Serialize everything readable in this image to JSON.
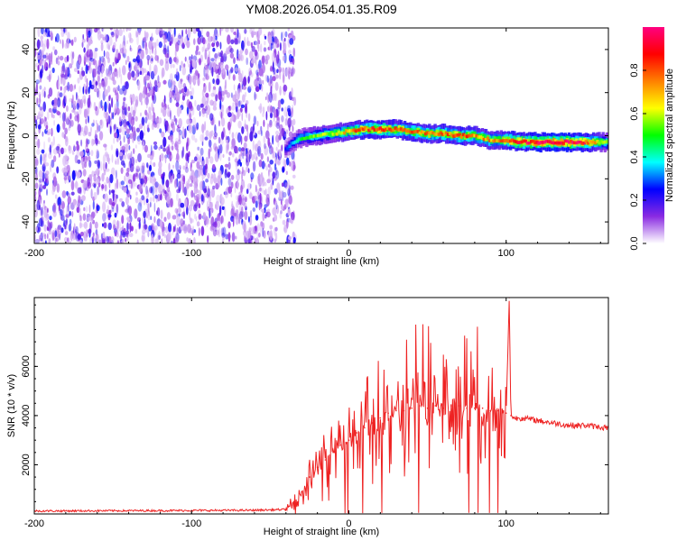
{
  "title": "YM08.2026.054.01.35.R09",
  "chart_data": [
    {
      "type": "heatmap",
      "xlabel": "Height of straight line (km)",
      "ylabel": "Frequency (Hz)",
      "xlim": [
        -200,
        165
      ],
      "ylim": [
        -50,
        50
      ],
      "xticks": [
        -200,
        -100,
        0,
        100
      ],
      "yticks": [
        -40,
        -20,
        0,
        20,
        40
      ],
      "noise_region_x": [
        -200,
        -40
      ],
      "ridge": {
        "x": [
          -40,
          -35,
          -30,
          -20,
          -10,
          0,
          10,
          20,
          30,
          40,
          50,
          60,
          70,
          80,
          90,
          100,
          110,
          120,
          130,
          140,
          150,
          165
        ],
        "frequency": [
          -6,
          -3,
          -1,
          0,
          1,
          2,
          3,
          3,
          3,
          2,
          1,
          1,
          0,
          0,
          -2,
          -2,
          -3,
          -3,
          -3,
          -3,
          -3,
          -3
        ],
        "amplitude": [
          0.25,
          0.35,
          0.45,
          0.55,
          0.6,
          0.7,
          0.8,
          0.85,
          0.8,
          0.75,
          0.75,
          0.75,
          0.8,
          0.75,
          0.7,
          0.8,
          0.9,
          0.95,
          0.95,
          0.95,
          0.9,
          0.5
        ]
      },
      "colorbar": {
        "label": "Normalized spectral amplitude",
        "range": [
          0,
          1
        ],
        "ticks": [
          "0.0",
          "0.2",
          "0.4",
          "0.6",
          "0.8"
        ],
        "colors": [
          "#ffffff",
          "#8a2be2",
          "#0000ff",
          "#00ffff",
          "#00ff00",
          "#ffff00",
          "#ff8000",
          "#ff0000",
          "#ff0080"
        ]
      }
    },
    {
      "type": "line",
      "xlabel": "Height of straight line (km)",
      "ylabel": "SNR (10 * v/v)",
      "xlim": [
        -200,
        165
      ],
      "ylim": [
        0,
        8800
      ],
      "xticks": [
        -200,
        -100,
        0,
        100
      ],
      "yticks": [
        2000,
        4000,
        6000
      ],
      "color": "#ee2222",
      "series": [
        {
          "name": "SNR",
          "x": [
            -200,
            -150,
            -100,
            -60,
            -40,
            -35,
            -30,
            -25,
            -20,
            -15,
            -10,
            -5,
            0,
            5,
            10,
            15,
            20,
            25,
            30,
            35,
            40,
            45,
            50,
            55,
            60,
            65,
            70,
            75,
            80,
            85,
            90,
            95,
            100,
            102,
            103,
            105,
            110,
            120,
            130,
            140,
            150,
            165
          ],
          "y": [
            120,
            130,
            140,
            150,
            180,
            500,
            900,
            1500,
            1900,
            2200,
            2500,
            2800,
            3000,
            3300,
            3500,
            3700,
            3900,
            4100,
            4200,
            4200,
            4300,
            4400,
            4300,
            4400,
            4300,
            4400,
            4400,
            4300,
            4300,
            4300,
            4200,
            4200,
            4100,
            8800,
            4000,
            3900,
            3900,
            3800,
            3700,
            3600,
            3600,
            3500
          ]
        }
      ]
    }
  ]
}
